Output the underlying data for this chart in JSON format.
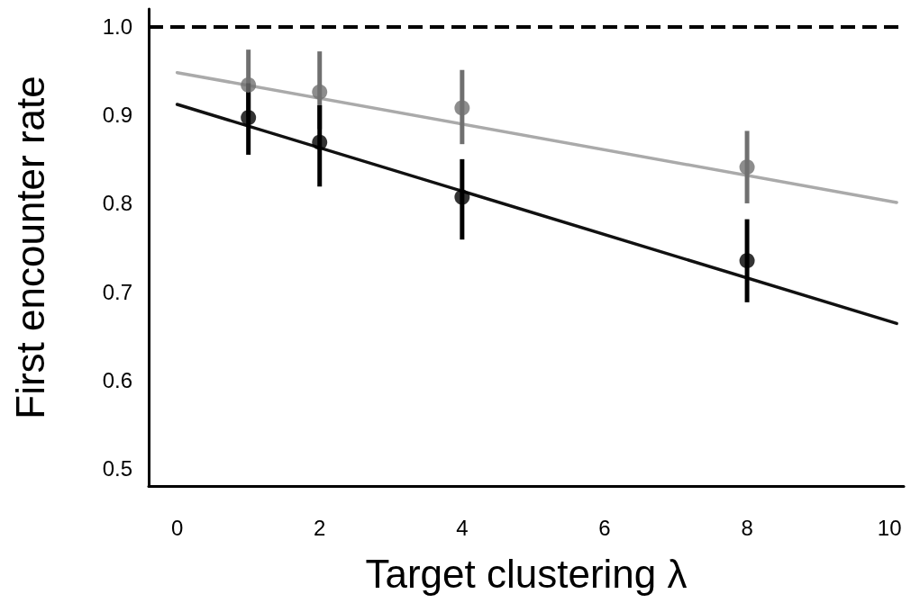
{
  "chart_data": {
    "type": "scatter",
    "xlabel": "Target clustering λ",
    "ylabel": "First encounter rate",
    "xlim": [
      -0.4,
      10.2
    ],
    "xticks": [
      0,
      2,
      4,
      6,
      8,
      10
    ],
    "ylim": [
      0.48,
      1.02
    ],
    "yticks": [
      0.5,
      0.6,
      0.7,
      0.8,
      0.9,
      {
        "value": 1,
        "label": "1.0"
      }
    ],
    "grid": false,
    "marker": "circle",
    "ref_lines": [
      {
        "axis": "y",
        "value": 1,
        "color": "#000000",
        "line_style": "dashed"
      }
    ],
    "series": [
      {
        "type": "line",
        "marker": "none",
        "color": "#aaaaaa",
        "x": [
          0,
          10.1
        ],
        "values": [
          0.948,
          0.801
        ]
      },
      {
        "type": "line",
        "marker": "none",
        "color": "#111111",
        "x": [
          0,
          10.1
        ],
        "values": [
          0.912,
          0.664
        ]
      },
      {
        "color": "#707070",
        "x": [
          1,
          2,
          4,
          8
        ],
        "values": [
          0.934,
          0.926,
          0.908,
          0.841
        ],
        "errors": [
          [
            0.898,
            0.974
          ],
          [
            0.884,
            0.972
          ],
          [
            0.867,
            0.951
          ],
          [
            0.8,
            0.882
          ]
        ]
      },
      {
        "color": "#000000",
        "x": [
          1,
          2,
          4,
          8
        ],
        "values": [
          0.897,
          0.869,
          0.807,
          0.735
        ],
        "errors": [
          [
            0.855,
            0.936
          ],
          [
            0.819,
            0.911
          ],
          [
            0.759,
            0.85
          ],
          [
            0.688,
            0.782
          ]
        ]
      }
    ]
  }
}
